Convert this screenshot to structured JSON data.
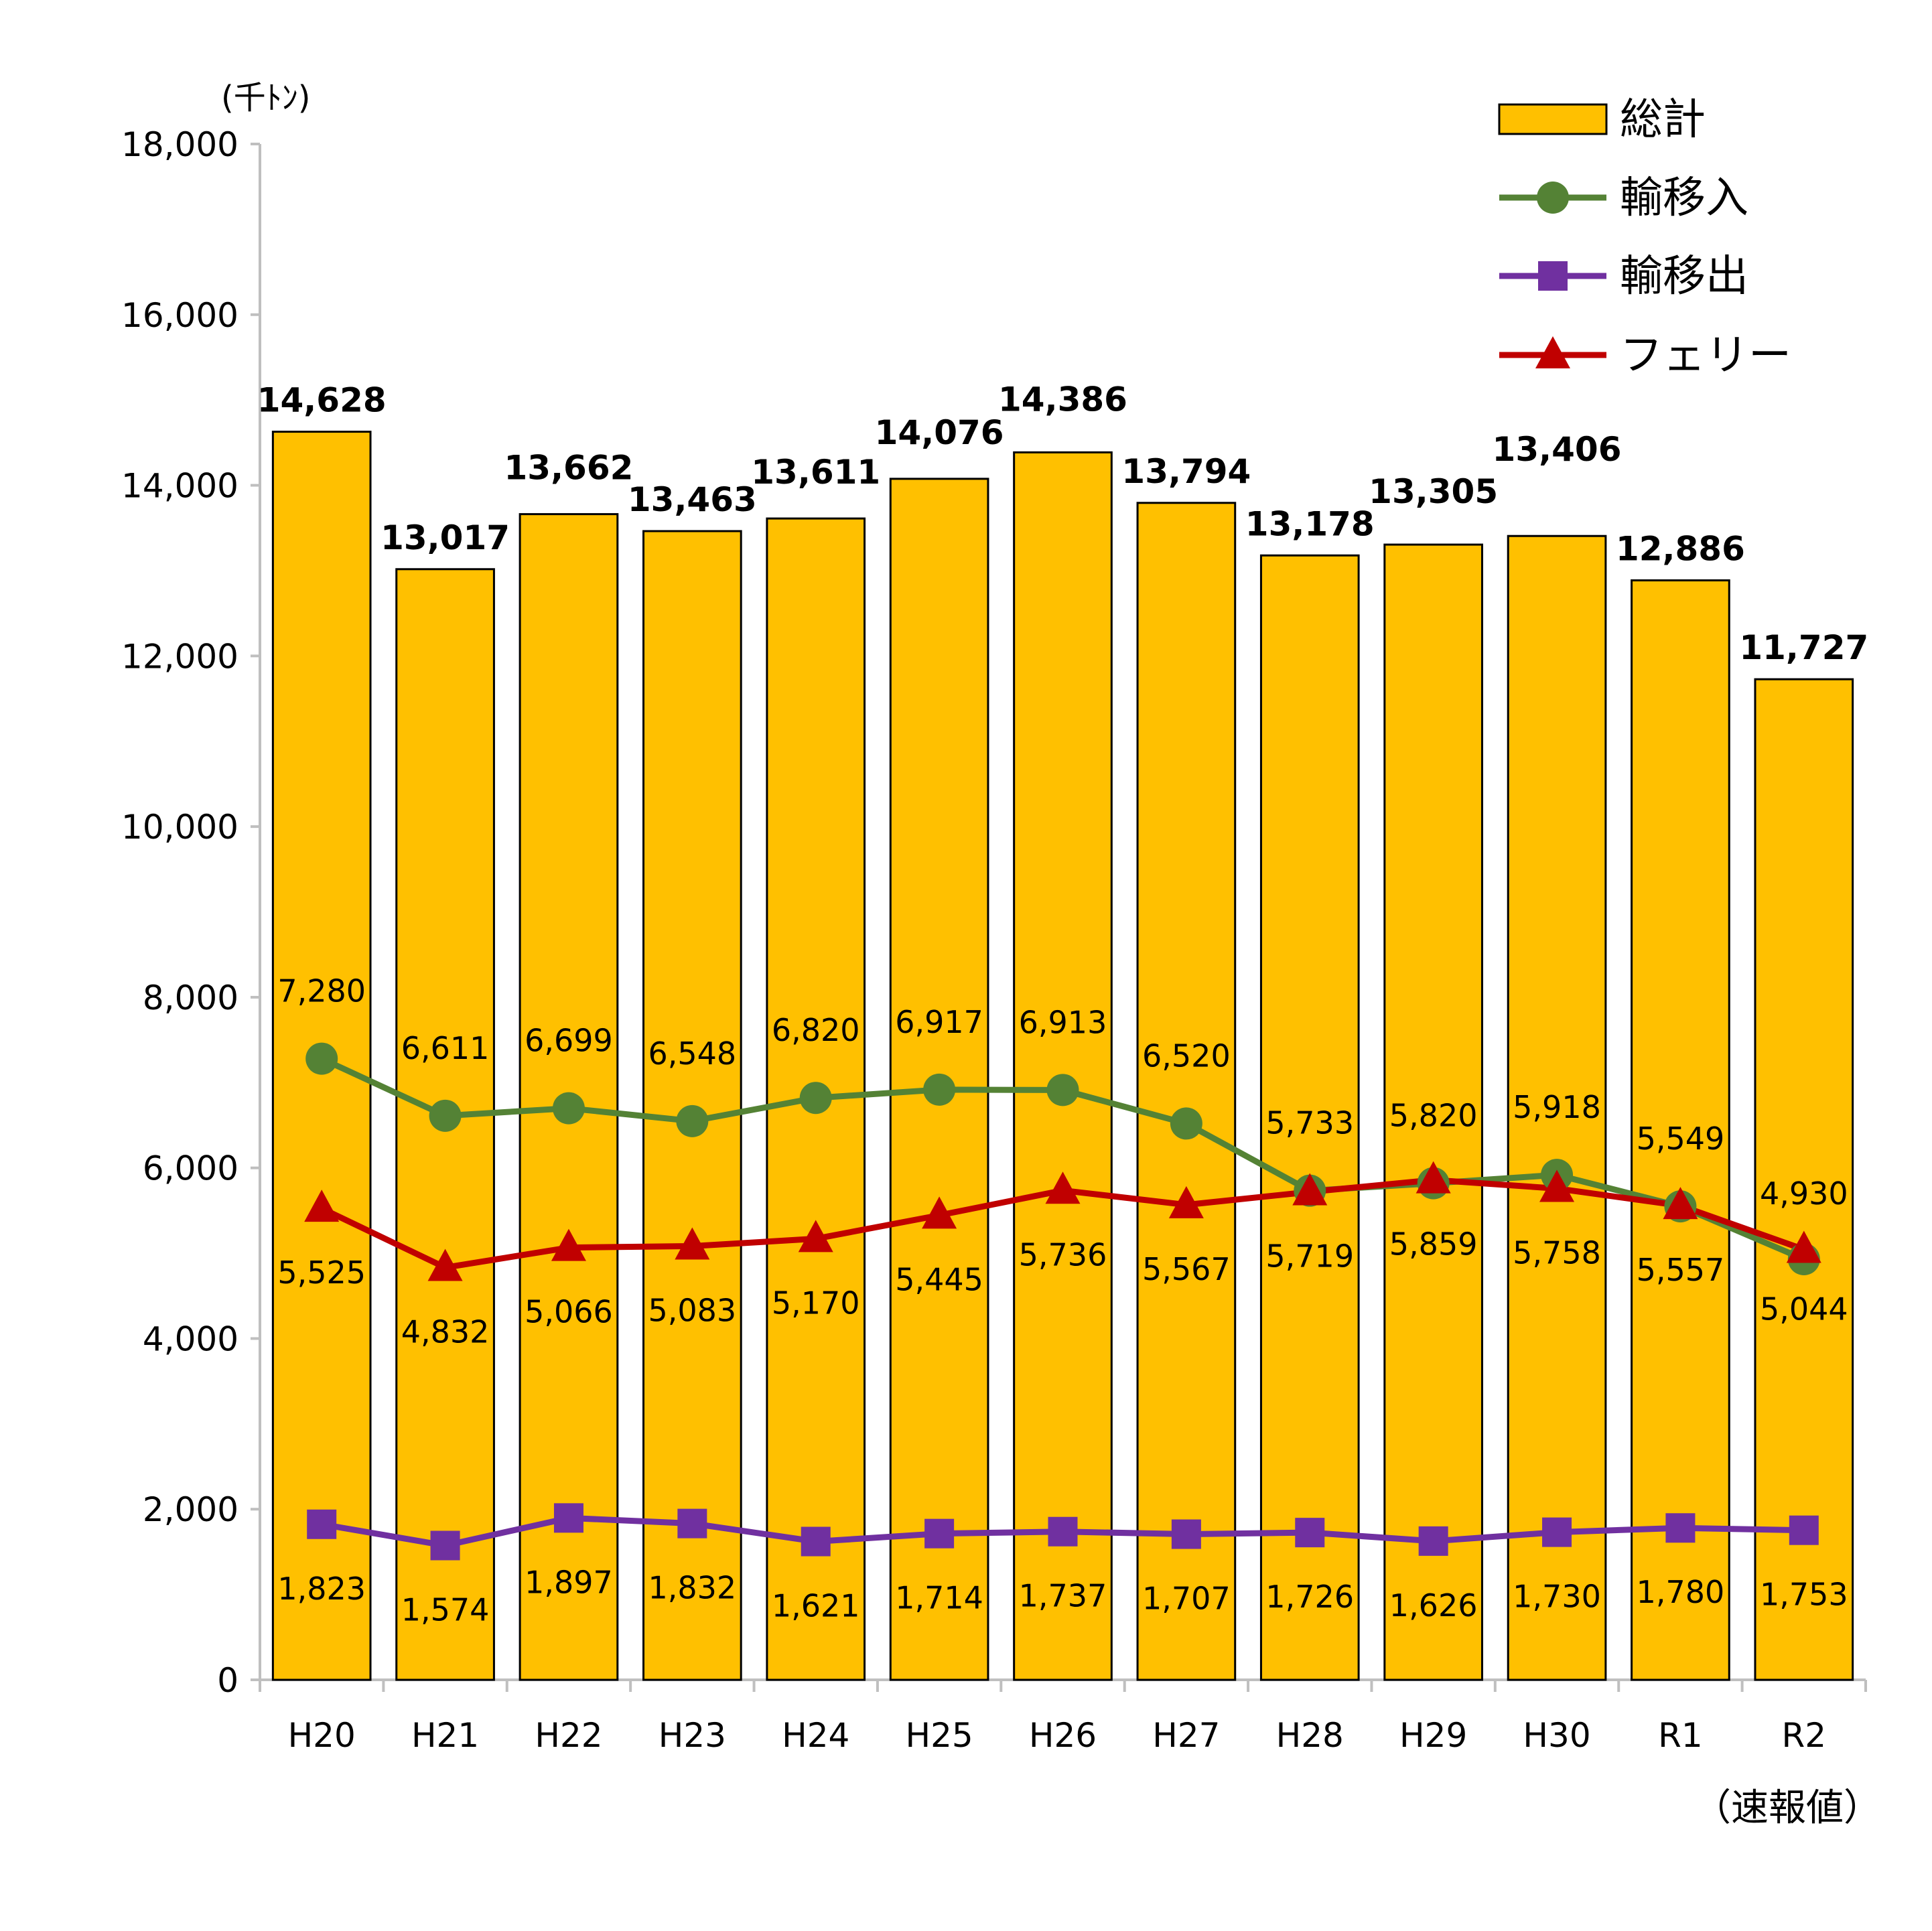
{
  "chart_data": {
    "type": "bar",
    "unit_label": "(千ﾄﾝ)",
    "categories": [
      "H20",
      "H21",
      "H22",
      "H23",
      "H24",
      "H25",
      "H26",
      "H27",
      "H28",
      "H29",
      "H30",
      "R1",
      "R2"
    ],
    "category_note": "（速報値）",
    "ylim": [
      0,
      18000
    ],
    "yticks": [
      0,
      2000,
      4000,
      6000,
      8000,
      10000,
      12000,
      14000,
      16000,
      18000
    ],
    "ytick_labels": [
      "0",
      "2,000",
      "4,000",
      "6,000",
      "8,000",
      "10,000",
      "12,000",
      "14,000",
      "16,000",
      "18,000"
    ],
    "grid": false,
    "legend_position": "top-right",
    "series": [
      {
        "name": "総計",
        "kind": "bar",
        "color": "#FFC000",
        "values": [
          14628,
          13017,
          13662,
          13463,
          13611,
          14076,
          14386,
          13794,
          13178,
          13305,
          13406,
          12886,
          11727
        ],
        "labels": [
          "14,628",
          "13,017",
          "13,662",
          "13,463",
          "13,611",
          "14,076",
          "14,386",
          "13,794",
          "13,178",
          "13,305",
          "13,406",
          "12,886",
          "11,727"
        ]
      },
      {
        "name": "輸移入",
        "kind": "line",
        "marker": "circle",
        "color": "#548235",
        "values": [
          7280,
          6611,
          6699,
          6548,
          6820,
          6917,
          6913,
          6520,
          5733,
          5820,
          5918,
          5549,
          4930
        ],
        "labels": [
          "7,280",
          "6,611",
          "6,699",
          "6,548",
          "6,820",
          "6,917",
          "6,913",
          "6,520",
          "5,733",
          "5,820",
          "5,918",
          "5,549",
          "4,930"
        ]
      },
      {
        "name": "輸移出",
        "kind": "line",
        "marker": "square",
        "color": "#7030A0",
        "values": [
          1823,
          1574,
          1897,
          1832,
          1621,
          1714,
          1737,
          1707,
          1726,
          1626,
          1730,
          1780,
          1753
        ],
        "labels": [
          "1,823",
          "1,574",
          "1,897",
          "1,832",
          "1,621",
          "1,714",
          "1,737",
          "1,707",
          "1,726",
          "1,626",
          "1,730",
          "1,780",
          "1,753"
        ]
      },
      {
        "name": "フェリー",
        "kind": "line",
        "marker": "triangle",
        "color": "#C00000",
        "values": [
          5525,
          4832,
          5066,
          5083,
          5170,
          5445,
          5736,
          5567,
          5719,
          5859,
          5758,
          5557,
          5044
        ],
        "labels": [
          "5,525",
          "4,832",
          "5,066",
          "5,083",
          "5,170",
          "5,445",
          "5,736",
          "5,567",
          "5,719",
          "5,859",
          "5,758",
          "5,557",
          "5,044"
        ]
      }
    ]
  }
}
